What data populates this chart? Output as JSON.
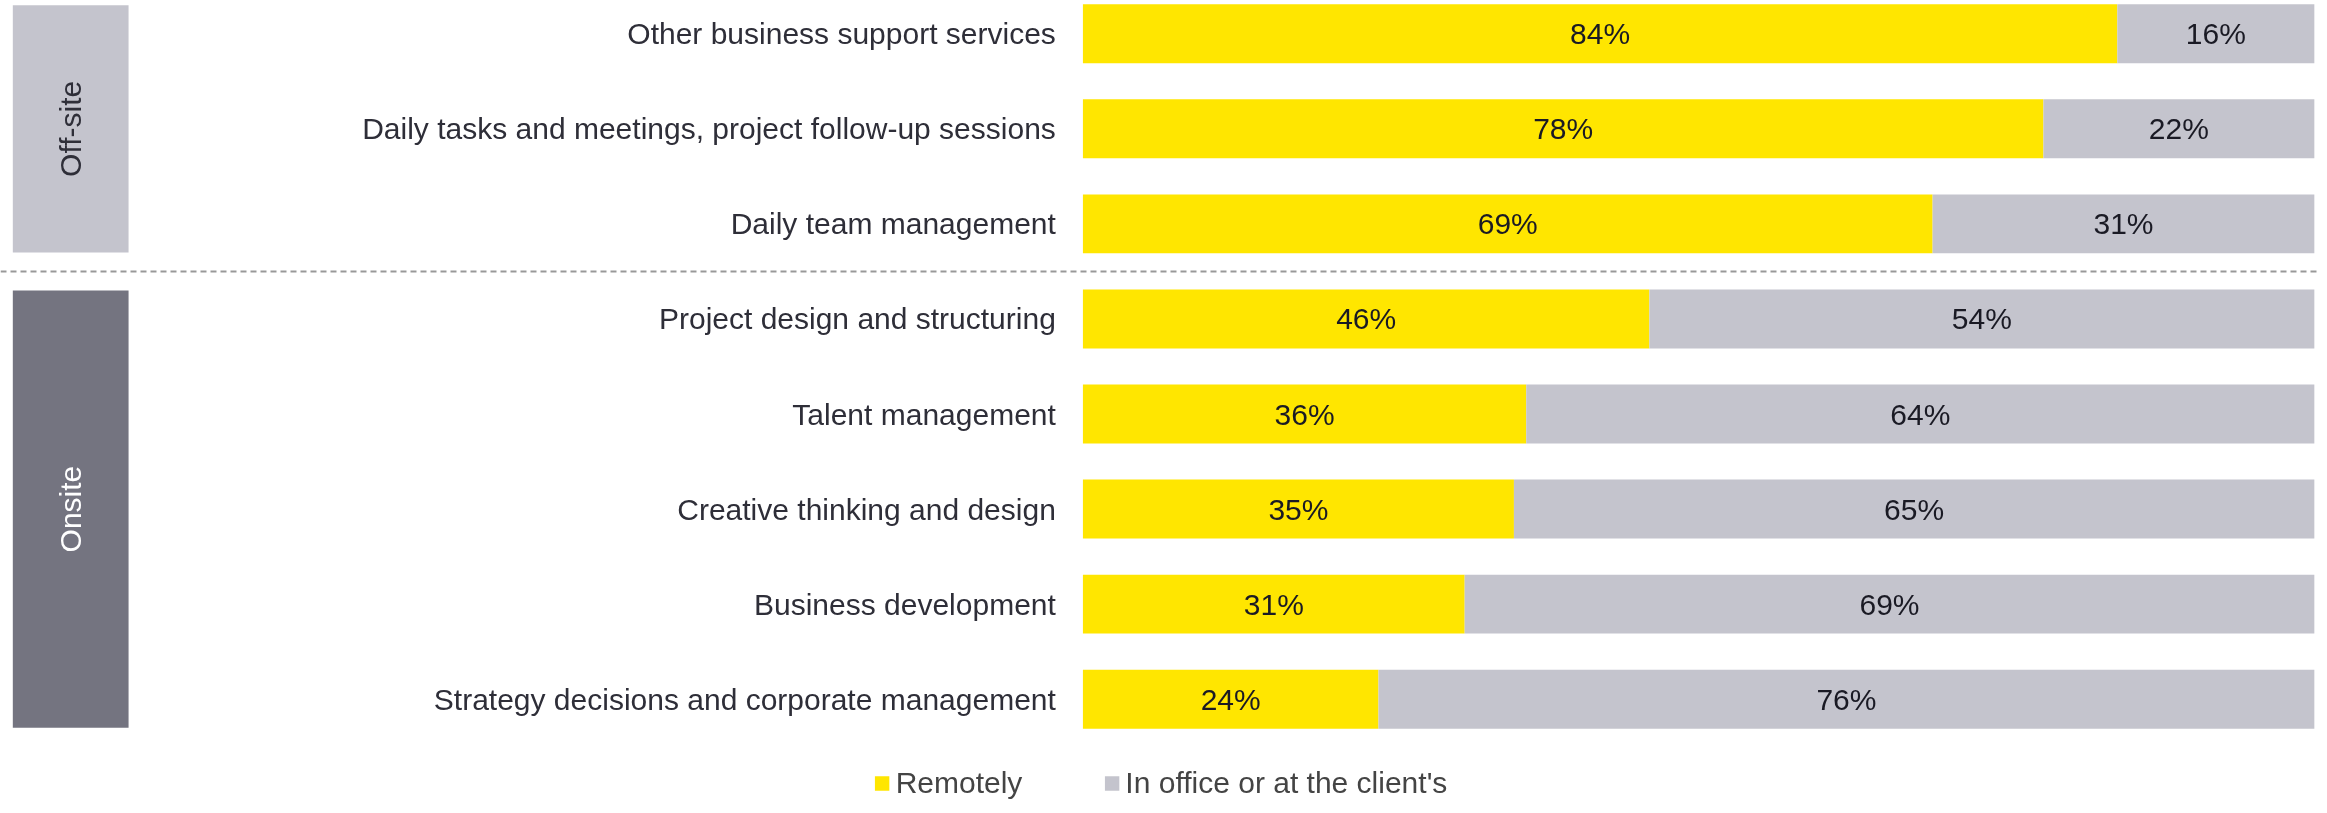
{
  "chart_data": {
    "type": "bar",
    "orientation": "horizontal",
    "stacked": true,
    "legend": "bottom",
    "grid": false,
    "xlim": [
      0,
      100
    ],
    "categories": [
      "Other business support services",
      "Daily tasks and meetings, project follow-up sessions",
      "Daily team management",
      "Project design and structuring",
      "Talent management",
      "Creative thinking and design",
      "Business development",
      "Strategy decisions and corporate management"
    ],
    "series": [
      {
        "name": "Remotely",
        "color": "#ffe600",
        "values": [
          84,
          78,
          69,
          46,
          36,
          35,
          31,
          24
        ],
        "value_labels": [
          "84%",
          "78%",
          "69%",
          "46%",
          "36%",
          "35%",
          "31%",
          "24%"
        ]
      },
      {
        "name": "In office or at the client's",
        "color": "#c4c4cd",
        "values": [
          16,
          22,
          31,
          54,
          64,
          65,
          69,
          76
        ],
        "value_labels": [
          "16%",
          "22%",
          "31%",
          "54%",
          "64%",
          "65%",
          "69%",
          "76%"
        ]
      }
    ],
    "annotations": [
      "Off-site",
      "Onsite"
    ]
  }
}
